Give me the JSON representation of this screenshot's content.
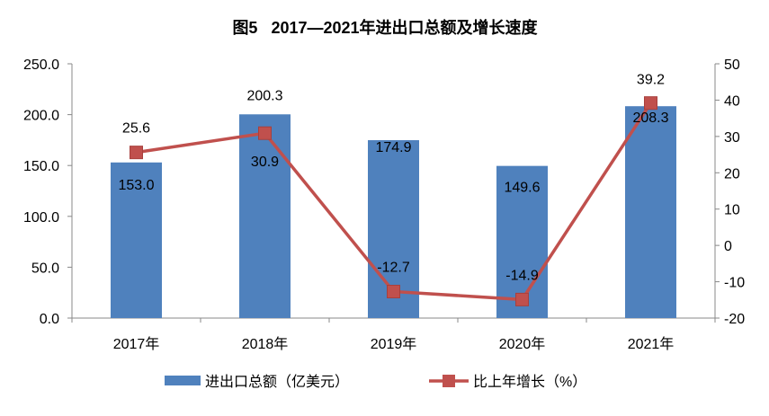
{
  "chart_data": {
    "type": "bar+line",
    "title": "图5   2017—2021年进出口总额及增长速度",
    "categories": [
      "2017年",
      "2018年",
      "2019年",
      "2020年",
      "2021年"
    ],
    "series": [
      {
        "name": "进出口总额（亿美元）",
        "type": "bar",
        "axis": "left",
        "color": "#4F81BD",
        "values": [
          153.0,
          200.3,
          174.9,
          149.6,
          208.3
        ],
        "labels": [
          "153.0",
          "200.3",
          "174.9",
          "149.6",
          "208.3"
        ]
      },
      {
        "name": "比上年增长（%）",
        "type": "line",
        "axis": "right",
        "color": "#C0504D",
        "marker": "square",
        "values": [
          25.6,
          30.9,
          -12.7,
          -14.9,
          39.2
        ],
        "labels": [
          "25.6",
          "30.9",
          "-12.7",
          "-14.9",
          "39.2"
        ]
      }
    ],
    "left_axis": {
      "ylim": [
        0,
        250
      ],
      "ticks": [
        "0.0",
        "50.0",
        "100.0",
        "150.0",
        "200.0",
        "250.0"
      ]
    },
    "right_axis": {
      "ylim": [
        -20,
        50
      ],
      "ticks": [
        "-20",
        "-10",
        "0",
        "10",
        "20",
        "30",
        "40",
        "50"
      ]
    },
    "grid": false,
    "legend": "bottom"
  }
}
